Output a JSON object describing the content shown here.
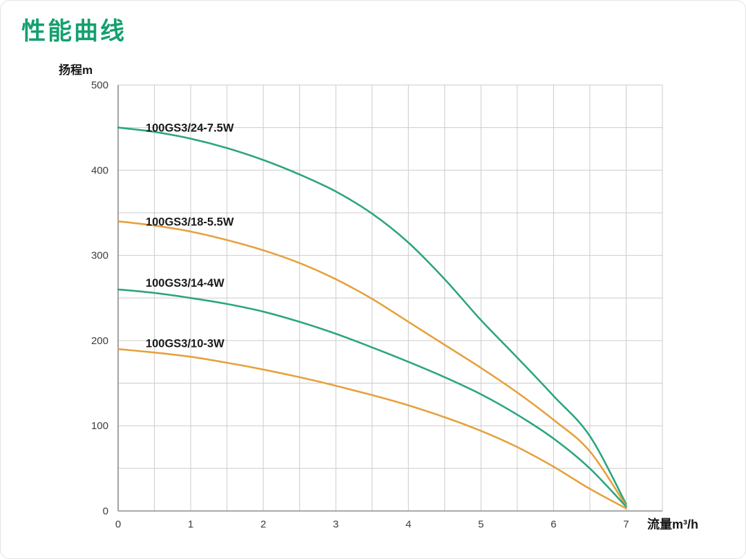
{
  "page": {
    "title": "性能曲线"
  },
  "axes": {
    "y_title": "扬程m",
    "x_title": "流量m³/h"
  },
  "chart_data": {
    "type": "line",
    "title": "性能曲线",
    "xlabel": "流量m³/h",
    "ylabel": "扬程m",
    "xlim": [
      0,
      7.5
    ],
    "ylim": [
      0,
      500
    ],
    "x_ticks": [
      0,
      1,
      2,
      3,
      4,
      5,
      6,
      7
    ],
    "y_ticks": [
      0,
      100,
      200,
      300,
      400,
      500
    ],
    "grid": {
      "on": true,
      "x_step": 0.5,
      "y_step": 50,
      "legend_position": "inline-labels"
    },
    "x": [
      0,
      0.5,
      1,
      1.5,
      2,
      2.5,
      3,
      3.5,
      4,
      4.5,
      5,
      5.5,
      6,
      6.5,
      7
    ],
    "series": [
      {
        "name": "100GS3/24-7.5W",
        "color": "#2ca57f",
        "values": [
          450,
          445,
          437,
          426,
          412,
          395,
          375,
          349,
          315,
          272,
          224,
          180,
          135,
          88,
          8
        ],
        "label_pos": [
          0.38,
          450
        ]
      },
      {
        "name": "100GS3/18-5.5W",
        "color": "#e6a13c",
        "values": [
          340,
          335,
          328,
          318,
          306,
          291,
          272,
          249,
          222,
          195,
          168,
          139,
          107,
          70,
          6
        ],
        "label_pos": [
          0.38,
          340
        ]
      },
      {
        "name": "100GS3/14-4W",
        "color": "#2ca57f",
        "values": [
          260,
          256,
          250,
          243,
          234,
          222,
          208,
          192,
          175,
          157,
          137,
          113,
          85,
          50,
          5
        ],
        "label_pos": [
          0.38,
          268
        ]
      },
      {
        "name": "100GS3/10-3W",
        "color": "#e6a13c",
        "values": [
          190,
          186,
          181,
          174,
          166,
          157,
          147,
          136,
          124,
          110,
          94,
          75,
          52,
          26,
          3
        ],
        "label_pos": [
          0.38,
          197
        ]
      }
    ],
    "style": {
      "grid_color": "#cbcbcb",
      "axis_color": "#8a8a8a",
      "title_color": "#14a06e"
    }
  }
}
